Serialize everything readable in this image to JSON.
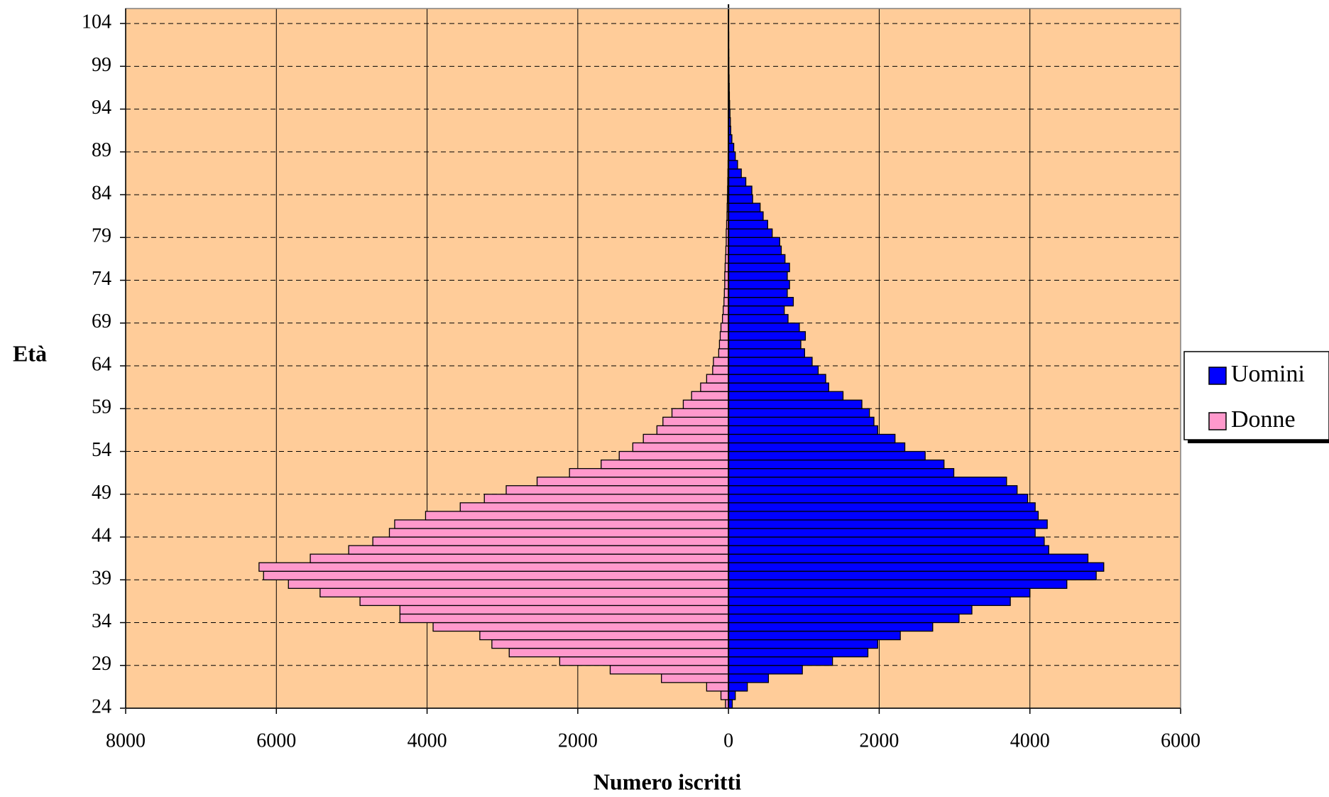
{
  "chart_data": {
    "type": "bar",
    "orientation": "horizontal",
    "stacked": false,
    "xlabel": "Numero iscritti",
    "ylabel": "Età",
    "categories": [
      "24",
      null,
      null,
      null,
      null,
      "29",
      null,
      null,
      null,
      null,
      "34",
      null,
      null,
      null,
      null,
      "39",
      null,
      null,
      null,
      null,
      "44",
      null,
      null,
      null,
      null,
      "49",
      null,
      null,
      null,
      null,
      "54",
      null,
      null,
      null,
      null,
      "59",
      null,
      null,
      null,
      null,
      "64",
      null,
      null,
      null,
      null,
      "69",
      null,
      null,
      null,
      null,
      "74",
      null,
      null,
      null,
      null,
      "79",
      null,
      null,
      null,
      null,
      "84",
      null,
      null,
      null,
      null,
      "89",
      null,
      null,
      null,
      null,
      "94",
      null,
      null,
      null,
      null,
      "99",
      null,
      null,
      null,
      null,
      "104"
    ],
    "series": [
      {
        "name": "Uomini",
        "color": "#0000ff",
        "values": [
          50,
          90,
          250,
          530,
          980,
          1380,
          1850,
          1980,
          2280,
          2710,
          3060,
          3230,
          3740,
          4000,
          4490,
          4880,
          4980,
          4770,
          4250,
          4190,
          4070,
          4230,
          4110,
          4070,
          3970,
          3830,
          3690,
          2990,
          2860,
          2610,
          2340,
          2210,
          1980,
          1930,
          1870,
          1770,
          1520,
          1330,
          1290,
          1190,
          1110,
          1010,
          960,
          1020,
          940,
          790,
          740,
          860,
          780,
          810,
          780,
          810,
          750,
          700,
          680,
          580,
          520,
          460,
          420,
          320,
          310,
          230,
          170,
          120,
          90,
          70,
          45,
          30,
          25,
          20,
          15,
          12,
          10,
          8,
          6,
          5,
          4,
          3,
          3,
          2,
          1
        ]
      },
      {
        "name": "Donne",
        "color": "#ff99cc",
        "values": [
          -40,
          -100,
          -290,
          -890,
          -1570,
          -2240,
          -2910,
          -3140,
          -3300,
          -3920,
          -4360,
          -4360,
          -4890,
          -5420,
          -5840,
          -6170,
          -6230,
          -5550,
          -5040,
          -4720,
          -4500,
          -4430,
          -4020,
          -3560,
          -3240,
          -2950,
          -2540,
          -2110,
          -1690,
          -1450,
          -1270,
          -1130,
          -950,
          -870,
          -750,
          -600,
          -490,
          -370,
          -290,
          -210,
          -200,
          -130,
          -120,
          -110,
          -100,
          -80,
          -70,
          -60,
          -55,
          -50,
          -50,
          -45,
          -40,
          -35,
          -30,
          -30,
          -25,
          -20,
          -18,
          -15,
          -12,
          -10,
          -8,
          -6,
          -5,
          -4,
          -3,
          -3,
          -2,
          -2,
          -1,
          -1,
          -1,
          -1,
          -1,
          0,
          0,
          0,
          0,
          0,
          0
        ]
      }
    ],
    "xlim": [
      -8000,
      6000
    ],
    "xticks": [
      {
        "value": -8000,
        "label": "8000"
      },
      {
        "value": -6000,
        "label": "6000"
      },
      {
        "value": -4000,
        "label": "4000"
      },
      {
        "value": -2000,
        "label": "2000"
      },
      0,
      2000,
      4000,
      6000
    ],
    "grid": true,
    "background": "#ffcc99",
    "legend": "right"
  }
}
